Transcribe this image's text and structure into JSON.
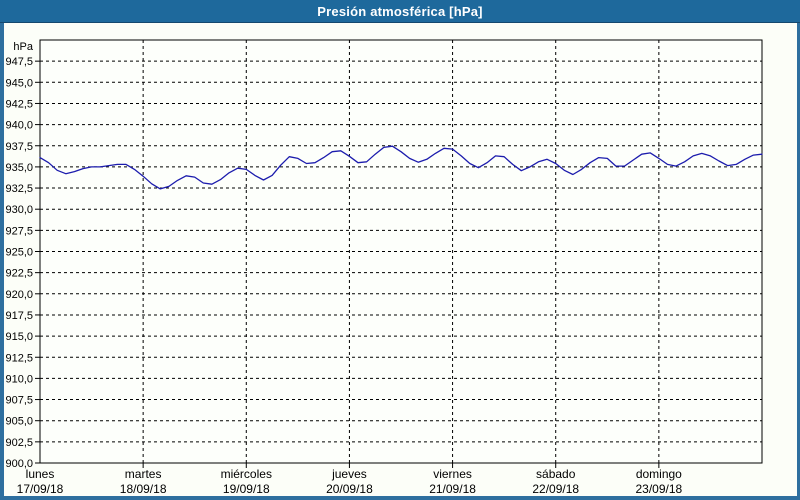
{
  "window": {
    "title": "Presión atmosférica [hPa]"
  },
  "colors": {
    "titlebar_bg": "#1e699c",
    "titlebar_text": "#ffffff",
    "window_border": "#2e6f9f",
    "page_bg": "#fcfef8",
    "plot_bg": "#fdfffb",
    "axis": "#000000",
    "grid": "#000000",
    "series": "#1c1cad"
  },
  "chart_data": {
    "type": "line",
    "title": "Presión atmosférica [hPa]",
    "ylabel": "hPa",
    "xlabel": "",
    "legend": false,
    "grid": true,
    "grid_style": "dashed",
    "y_axis": {
      "unit_label": "hPa",
      "min": 900.0,
      "max": 950.0,
      "tick_step": 2.5,
      "tick_labels": [
        "947,5",
        "945,0",
        "942,5",
        "940,0",
        "937,5",
        "935,0",
        "932,5",
        "930,0",
        "927,5",
        "925,0",
        "922,5",
        "920,0",
        "917,5",
        "915,0",
        "912,5",
        "910,0",
        "907,5",
        "905,0",
        "902,5",
        "900,0"
      ],
      "tick_values": [
        947.5,
        945.0,
        942.5,
        940.0,
        937.5,
        935.0,
        932.5,
        930.0,
        927.5,
        925.0,
        922.5,
        920.0,
        917.5,
        915.0,
        912.5,
        910.0,
        907.5,
        905.0,
        902.5,
        900.0
      ]
    },
    "x_axis": {
      "hours_total": 168,
      "hours_per_day": 24,
      "days": [
        {
          "name": "lunes",
          "date": "17/09/18"
        },
        {
          "name": "martes",
          "date": "18/09/18"
        },
        {
          "name": "miércoles",
          "date": "19/09/18"
        },
        {
          "name": "jueves",
          "date": "20/09/18"
        },
        {
          "name": "viernes",
          "date": "21/09/18"
        },
        {
          "name": "sábado",
          "date": "22/09/18"
        },
        {
          "name": "domingo",
          "date": "23/09/18"
        }
      ]
    },
    "series": [
      {
        "name": "Presión atmosférica",
        "unit": "hPa",
        "x_hours": [
          0,
          2,
          4,
          6,
          8,
          10,
          12,
          14,
          16,
          18,
          20,
          22,
          24,
          26,
          28,
          30,
          32,
          34,
          36,
          38,
          40,
          42,
          44,
          46,
          48,
          50,
          52,
          54,
          56,
          58,
          60,
          62,
          64,
          66,
          68,
          70,
          72,
          74,
          76,
          78,
          80,
          82,
          84,
          86,
          88,
          90,
          92,
          94,
          96,
          98,
          100,
          102,
          104,
          106,
          108,
          110,
          112,
          114,
          116,
          118,
          120,
          122,
          124,
          126,
          128,
          130,
          132,
          134,
          136,
          138,
          140,
          142,
          144,
          146,
          148,
          150,
          152,
          154,
          156,
          158,
          160,
          162,
          164,
          166,
          168
        ],
        "values": [
          936.1,
          935.5,
          934.6,
          934.2,
          934.45,
          934.8,
          935.0,
          935.0,
          935.15,
          935.3,
          935.3,
          934.7,
          933.9,
          933.0,
          932.4,
          932.7,
          933.4,
          933.95,
          933.8,
          933.1,
          932.95,
          933.5,
          934.3,
          934.85,
          934.7,
          934.0,
          933.45,
          934.0,
          935.2,
          936.2,
          936.0,
          935.4,
          935.5,
          936.1,
          936.8,
          936.9,
          936.25,
          935.5,
          935.6,
          936.5,
          937.3,
          937.45,
          936.8,
          936.0,
          935.55,
          935.9,
          936.6,
          937.2,
          937.1,
          936.3,
          935.4,
          934.9,
          935.5,
          936.3,
          936.2,
          935.3,
          934.55,
          935.0,
          935.6,
          935.9,
          935.4,
          934.6,
          934.1,
          934.7,
          935.5,
          936.1,
          936.0,
          935.1,
          935.1,
          935.8,
          936.5,
          936.65,
          936.0,
          935.3,
          935.1,
          935.6,
          936.3,
          936.6,
          936.3,
          935.7,
          935.15,
          935.3,
          935.9,
          936.4,
          936.5
        ]
      }
    ]
  }
}
